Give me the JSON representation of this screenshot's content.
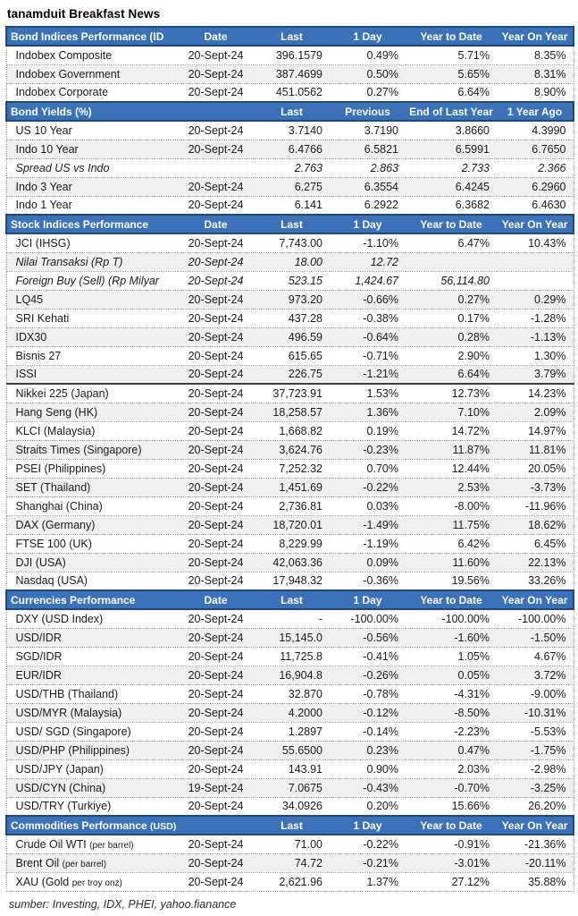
{
  "title": "tanamduit Breakfast News",
  "footer": "sumber: Investing, IDX, PHEI, yahoo.fianance",
  "colors": {
    "header_bg": "#3a71b9",
    "header_border": "#1e4878",
    "stripe": "#efefef",
    "divider": "#404040"
  },
  "sections": [
    {
      "id": "bond-indices",
      "header": {
        "label": "Bond Indices Performance (ID",
        "label_small": "",
        "date_label": "Date",
        "cols": [
          "Last",
          "1 Day",
          "Year to Date",
          "Year On Year"
        ]
      },
      "rows": [
        {
          "name": "Indobex Composite",
          "date": "20-Sept-24",
          "values": [
            "396.1579",
            "0.49%",
            "5.71%",
            "8.35%"
          ]
        },
        {
          "name": "Indobex Government",
          "date": "20-Sept-24",
          "values": [
            "387.4699",
            "0.50%",
            "5.65%",
            "8.31%"
          ]
        },
        {
          "name": "Indobex Corporate",
          "date": "20-Sept-24",
          "values": [
            "451.0562",
            "0.27%",
            "6.64%",
            "8.90%"
          ]
        }
      ]
    },
    {
      "id": "bond-yields",
      "header": {
        "label": "Bond Yields (%)",
        "label_small": "",
        "date_label": "",
        "cols": [
          "Last",
          "Previous",
          "End of Last Year",
          "1 Year Ago"
        ]
      },
      "rows": [
        {
          "name": "US 10 Year",
          "date": "20-Sept-24",
          "values": [
            "3.7140",
            "3.7190",
            "3.8660",
            "4.3990"
          ]
        },
        {
          "name": "Indo 10 Year",
          "date": "20-Sept-24",
          "values": [
            "6.4766",
            "6.5821",
            "6.5991",
            "6.7650"
          ]
        },
        {
          "name": "Spread US vs Indo",
          "date": "",
          "italic": true,
          "values": [
            "2.763",
            "2.863",
            "2.733",
            "2.366"
          ]
        },
        {
          "name": "Indo 3 Year",
          "date": "20-Sept-24",
          "values": [
            "6.275",
            "6.3554",
            "6.4245",
            "6.2960"
          ]
        },
        {
          "name": "Indo 1 Year",
          "date": "20-Sept-24",
          "values": [
            "6.141",
            "6.2922",
            "6.3682",
            "6.4630"
          ]
        }
      ]
    },
    {
      "id": "stock-indices",
      "header": {
        "label": "Stock Indices Performance",
        "label_small": "",
        "date_label": "Date",
        "cols": [
          "Last",
          "1 Day",
          "Year to Date",
          "Year On Year"
        ]
      },
      "rows": [
        {
          "name": "JCI (IHSG)",
          "date": "20-Sept-24",
          "values": [
            "7,743.00",
            "-1.10%",
            "6.47%",
            "10.43%"
          ]
        },
        {
          "name": "Nilai Transaksi (Rp T)",
          "date": "20-Sept-24",
          "italic": true,
          "values": [
            "18.00",
            "12.72",
            "",
            ""
          ]
        },
        {
          "name": "Foreign Buy (Sell) (Rp Milyar",
          "date": "20-Sept-24",
          "italic": true,
          "values": [
            "523.15",
            "1,424.67",
            "56,114.80",
            ""
          ]
        },
        {
          "name": "LQ45",
          "date": "20-Sept-24",
          "values": [
            "973.20",
            "-0.66%",
            "0.27%",
            "0.29%"
          ]
        },
        {
          "name": "SRI Kehati",
          "date": "20-Sept-24",
          "values": [
            "437.28",
            "-0.38%",
            "0.17%",
            "-1.28%"
          ]
        },
        {
          "name": "IDX30",
          "date": "20-Sept-24",
          "values": [
            "496.59",
            "-0.64%",
            "0.28%",
            "-1.13%"
          ]
        },
        {
          "name": "Bisnis 27",
          "date": "20-Sept-24",
          "values": [
            "615.65",
            "-0.71%",
            "2.90%",
            "1.30%"
          ]
        },
        {
          "name": "ISSI",
          "date": "20-Sept-24",
          "values": [
            "226.75",
            "-1.21%",
            "6.64%",
            "3.79%"
          ]
        },
        {
          "name": "Nikkei 225 (Japan)",
          "date": "20-Sept-24",
          "divider": true,
          "values": [
            "37,723.91",
            "1.53%",
            "12.73%",
            "14.23%"
          ]
        },
        {
          "name": "Hang Seng (HK)",
          "date": "20-Sept-24",
          "values": [
            "18,258.57",
            "1.36%",
            "7.10%",
            "2.09%"
          ]
        },
        {
          "name": "KLCI (Malaysia)",
          "date": "20-Sept-24",
          "values": [
            "1,668.82",
            "0.19%",
            "14.72%",
            "14.97%"
          ]
        },
        {
          "name": "Straits Times (Singapore)",
          "date": "20-Sept-24",
          "values": [
            "3,624.76",
            "-0.23%",
            "11.87%",
            "11.81%"
          ]
        },
        {
          "name": "PSEI (Philippines)",
          "date": "20-Sept-24",
          "values": [
            "7,252.32",
            "0.70%",
            "12.44%",
            "20.05%"
          ]
        },
        {
          "name": "SET (Thailand)",
          "date": "20-Sept-24",
          "values": [
            "1,451.69",
            "-0.22%",
            "2.53%",
            "-3.73%"
          ]
        },
        {
          "name": "Shanghai (China)",
          "date": "20-Sept-24",
          "values": [
            "2,736.81",
            "0.03%",
            "-8.00%",
            "-11.96%"
          ]
        },
        {
          "name": "DAX (Germany)",
          "date": "20-Sept-24",
          "values": [
            "18,720.01",
            "-1.49%",
            "11.75%",
            "18.62%"
          ]
        },
        {
          "name": "FTSE 100 (UK)",
          "date": "20-Sept-24",
          "values": [
            "8,229.99",
            "-1.19%",
            "6.42%",
            "6.45%"
          ]
        },
        {
          "name": "DJI (USA)",
          "date": "20-Sept-24",
          "values": [
            "42,063.36",
            "0.09%",
            "11.60%",
            "22.13%"
          ]
        },
        {
          "name": "Nasdaq (USA)",
          "date": "20-Sept-24",
          "values": [
            "17,948.32",
            "-0.36%",
            "19.56%",
            "33.26%"
          ]
        }
      ]
    },
    {
      "id": "currencies",
      "header": {
        "label": "Currencies Performance",
        "label_small": "",
        "date_label": "Date",
        "cols": [
          "Last",
          "1 Day",
          "Year to Date",
          "Year On Year"
        ]
      },
      "rows": [
        {
          "name": "DXY (USD Index)",
          "date": "20-Sept-24",
          "values": [
            "-",
            "-100.00%",
            "-100.00%",
            "-100.00%"
          ]
        },
        {
          "name": "USD/IDR",
          "date": "20-Sept-24",
          "values": [
            "15,145.0",
            "-0.56%",
            "-1.60%",
            "-1.50%"
          ]
        },
        {
          "name": "SGD/IDR",
          "date": "20-Sept-24",
          "values": [
            "11,725.8",
            "-0.41%",
            "1.05%",
            "4.67%"
          ]
        },
        {
          "name": "EUR/IDR",
          "date": "20-Sept-24",
          "values": [
            "16,904.8",
            "-0.26%",
            "0.05%",
            "3.72%"
          ]
        },
        {
          "name": "USD/THB (Thailand)",
          "date": "20-Sept-24",
          "values": [
            "32.870",
            "-0.78%",
            "-4.31%",
            "-9.00%"
          ]
        },
        {
          "name": "USD/MYR (Malaysia)",
          "date": "20-Sept-24",
          "values": [
            "4.2000",
            "-0.12%",
            "-8.50%",
            "-10.31%"
          ]
        },
        {
          "name": "USD/ SGD (Singapore)",
          "date": "20-Sept-24",
          "values": [
            "1.2897",
            "-0.14%",
            "-2.23%",
            "-5.53%"
          ]
        },
        {
          "name": "USD/PHP (Philippines)",
          "date": "20-Sept-24",
          "values": [
            "55.6500",
            "0.23%",
            "0.47%",
            "-1.75%"
          ]
        },
        {
          "name": "USD/JPY (Japan)",
          "date": "20-Sept-24",
          "values": [
            "143.91",
            "0.90%",
            "2.03%",
            "-2.98%"
          ]
        },
        {
          "name": "USD/CYN (China)",
          "date": "19-Sept-24",
          "values": [
            "7.0675",
            "-0.43%",
            "-0.70%",
            "-3.25%"
          ]
        },
        {
          "name": "USD/TRY (Turkiye)",
          "date": "20-Sept-24",
          "values": [
            "34.0926",
            "0.20%",
            "15.66%",
            "26.20%"
          ]
        }
      ]
    },
    {
      "id": "commodities",
      "header": {
        "label": "Commodities Performance ",
        "label_small": "(USD)",
        "date_label": "",
        "cols": [
          "Last",
          "1 Day",
          "Year to Date",
          "Year On Year"
        ]
      },
      "rows": [
        {
          "name": "Crude Oil WTI ",
          "name_small": "(per barrel)",
          "date": "20-Sept-24",
          "values": [
            "71.00",
            "-0.22%",
            "-0.91%",
            "-21.36%"
          ]
        },
        {
          "name": "Brent Oil ",
          "name_small": "(per barrel)",
          "date": "20-Sept-24",
          "values": [
            "74.72",
            "-0.21%",
            "-3.01%",
            "-20.11%"
          ]
        },
        {
          "name": "XAU (Gold ",
          "name_small": "per troy onz)",
          "date": "20-Sept-24",
          "values": [
            "2,621.96",
            "1.37%",
            "27.12%",
            "35.88%"
          ]
        }
      ]
    }
  ]
}
